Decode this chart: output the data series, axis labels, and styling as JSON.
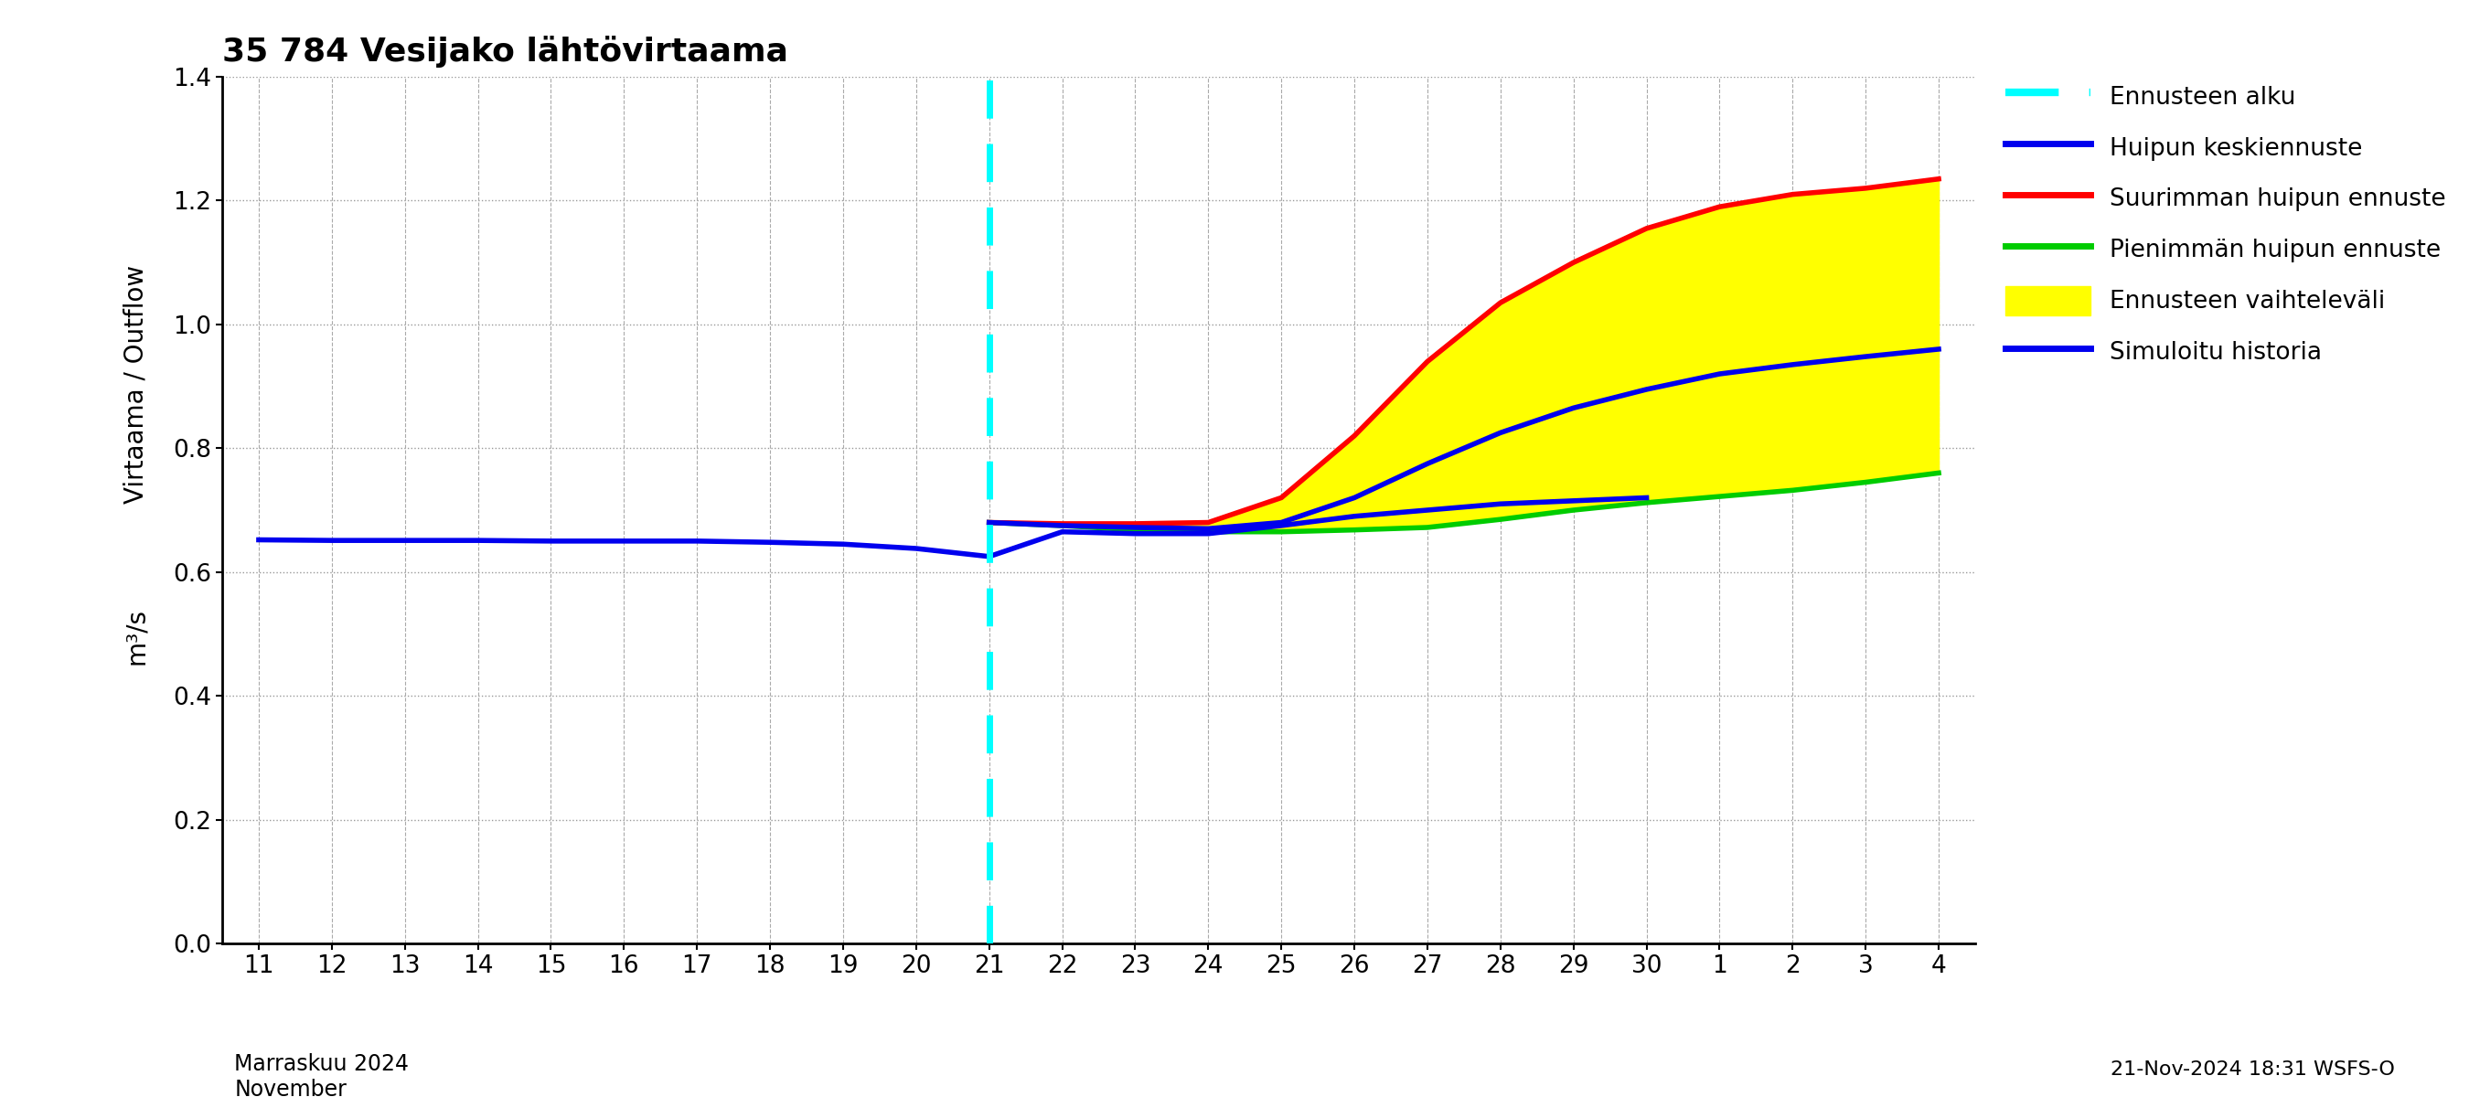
{
  "title": "35 784 Vesijako lähtövirtaama",
  "ylabel1": "Virtaama / Outflow",
  "ylabel2": "m³/s",
  "xlabel": "Marraskuu 2024\nNovember",
  "footer": "21-Nov-2024 18:31 WSFS-O",
  "ylim": [
    0.0,
    1.4
  ],
  "yticks": [
    0.0,
    0.2,
    0.4,
    0.6,
    0.8,
    1.0,
    1.2,
    1.4
  ],
  "ennusteen_alku_color": "#00FFFF",
  "history_color": "#0000EE",
  "max_color": "#FF0000",
  "min_color": "#00CC00",
  "fill_color": "#FFFF00",
  "grid_h_color": "#999999",
  "grid_v_color": "#AAAAAA",
  "legend_labels": [
    "Ennusteen alku",
    "Huipun keskiennuste",
    "Suurimman huipun ennuste",
    "Pienimmän huipun ennuste",
    "Ennusteen vaihteleväli",
    "Simuloitu historia"
  ],
  "xtick_labels": [
    "11",
    "12",
    "13",
    "14",
    "15",
    "16",
    "17",
    "18",
    "19",
    "20",
    "21",
    "22",
    "23",
    "24",
    "25",
    "26",
    "27",
    "28",
    "29",
    "30",
    "1",
    "2",
    "3",
    "4"
  ],
  "history_y": [
    0.652,
    0.651,
    0.651,
    0.651,
    0.65,
    0.65,
    0.65,
    0.648,
    0.645,
    0.638,
    0.625,
    0.665,
    0.662,
    0.662,
    0.675,
    0.69,
    0.7,
    0.71,
    0.715,
    0.72
  ],
  "mean_fc_x_idx": [
    10,
    11,
    12,
    13,
    14,
    15,
    16,
    17,
    18,
    19,
    20,
    21,
    22,
    23
  ],
  "mean_fc_y": [
    0.68,
    0.675,
    0.672,
    0.67,
    0.68,
    0.72,
    0.775,
    0.825,
    0.865,
    0.895,
    0.92,
    0.935,
    0.948,
    0.96
  ],
  "max_fc_x_idx": [
    10,
    11,
    12,
    13,
    14,
    15,
    16,
    17,
    18,
    19,
    20,
    21,
    22,
    23
  ],
  "max_fc_y": [
    0.68,
    0.678,
    0.678,
    0.68,
    0.72,
    0.82,
    0.94,
    1.035,
    1.1,
    1.155,
    1.19,
    1.21,
    1.22,
    1.235
  ],
  "min_fc_x_idx": [
    10,
    11,
    12,
    13,
    14,
    15,
    16,
    17,
    18,
    19,
    20,
    21,
    22,
    23
  ],
  "min_fc_y": [
    0.68,
    0.675,
    0.668,
    0.665,
    0.665,
    0.668,
    0.672,
    0.685,
    0.7,
    0.712,
    0.722,
    0.732,
    0.745,
    0.76
  ]
}
